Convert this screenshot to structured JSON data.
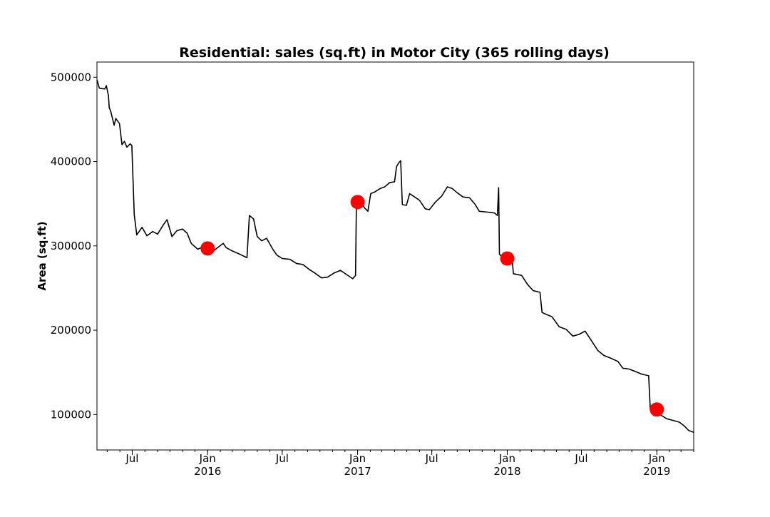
{
  "chart_data": {
    "type": "line",
    "title": "Residential: sales (sq.ft) in Motor City (365 rolling days)",
    "xlabel": "",
    "ylabel": "Area (sq.ft)",
    "xlim": [
      "2015-04-06",
      "2019-04-01"
    ],
    "ylim": [
      58000,
      518000
    ],
    "grid": false,
    "y_ticks": [
      100000,
      200000,
      300000,
      400000,
      500000
    ],
    "y_tick_labels": [
      "100000",
      "200000",
      "300000",
      "400000",
      "500000"
    ],
    "x_ticks": [
      {
        "date": "2015-07-01",
        "label": "Jul",
        "sublabel": ""
      },
      {
        "date": "2016-01-01",
        "label": "Jan",
        "sublabel": "2016"
      },
      {
        "date": "2016-07-01",
        "label": "Jul",
        "sublabel": ""
      },
      {
        "date": "2017-01-01",
        "label": "Jan",
        "sublabel": "2017"
      },
      {
        "date": "2017-07-01",
        "label": "Jul",
        "sublabel": ""
      },
      {
        "date": "2018-01-01",
        "label": "Jan",
        "sublabel": "2018"
      },
      {
        "date": "2018-07-01",
        "label": "Jul",
        "sublabel": ""
      },
      {
        "date": "2019-01-01",
        "label": "Jan",
        "sublabel": "2019"
      }
    ],
    "series": [
      {
        "line_color": "#000000",
        "points": [
          [
            "2015-04-06",
            497000
          ],
          [
            "2015-04-12",
            487000
          ],
          [
            "2015-04-25",
            486000
          ],
          [
            "2015-04-29",
            490000
          ],
          [
            "2015-05-04",
            478000
          ],
          [
            "2015-05-06",
            464000
          ],
          [
            "2015-05-10",
            459000
          ],
          [
            "2015-05-18",
            443000
          ],
          [
            "2015-05-22",
            451000
          ],
          [
            "2015-05-31",
            445000
          ],
          [
            "2015-06-06",
            420000
          ],
          [
            "2015-06-12",
            424000
          ],
          [
            "2015-06-18",
            417000
          ],
          [
            "2015-06-26",
            421000
          ],
          [
            "2015-06-30",
            419000
          ],
          [
            "2015-07-06",
            337000
          ],
          [
            "2015-07-12",
            313000
          ],
          [
            "2015-07-25",
            322000
          ],
          [
            "2015-08-06",
            312000
          ],
          [
            "2015-08-20",
            317000
          ],
          [
            "2015-09-01",
            314000
          ],
          [
            "2015-09-15",
            325000
          ],
          [
            "2015-09-24",
            331000
          ],
          [
            "2015-10-06",
            311000
          ],
          [
            "2015-10-18",
            318000
          ],
          [
            "2015-11-01",
            320000
          ],
          [
            "2015-11-12",
            315000
          ],
          [
            "2015-11-22",
            303000
          ],
          [
            "2015-12-08",
            296000
          ],
          [
            "2015-12-25",
            300000
          ],
          [
            "2016-01-15",
            294000
          ],
          [
            "2016-02-08",
            303000
          ],
          [
            "2016-02-15",
            298000
          ],
          [
            "2016-03-01",
            294000
          ],
          [
            "2016-03-20",
            290000
          ],
          [
            "2016-04-06",
            286000
          ],
          [
            "2016-04-12",
            336000
          ],
          [
            "2016-04-22",
            332000
          ],
          [
            "2016-05-01",
            311000
          ],
          [
            "2016-05-12",
            306000
          ],
          [
            "2016-05-24",
            309000
          ],
          [
            "2016-06-08",
            296000
          ],
          [
            "2016-06-18",
            289000
          ],
          [
            "2016-07-01",
            285000
          ],
          [
            "2016-07-20",
            284000
          ],
          [
            "2016-08-05",
            279000
          ],
          [
            "2016-08-20",
            278000
          ],
          [
            "2016-09-05",
            272000
          ],
          [
            "2016-09-18",
            268000
          ],
          [
            "2016-10-05",
            262000
          ],
          [
            "2016-10-20",
            263000
          ],
          [
            "2016-11-05",
            268000
          ],
          [
            "2016-11-20",
            271000
          ],
          [
            "2016-12-05",
            266000
          ],
          [
            "2016-12-20",
            261000
          ],
          [
            "2016-12-27",
            265000
          ],
          [
            "2016-12-29",
            352000
          ],
          [
            "2017-01-08",
            352000
          ],
          [
            "2017-01-18",
            345000
          ],
          [
            "2017-01-26",
            341000
          ],
          [
            "2017-02-02",
            362000
          ],
          [
            "2017-02-12",
            364000
          ],
          [
            "2017-02-25",
            368000
          ],
          [
            "2017-03-08",
            370000
          ],
          [
            "2017-03-20",
            375000
          ],
          [
            "2017-04-01",
            376000
          ],
          [
            "2017-04-06",
            394000
          ],
          [
            "2017-04-12",
            399000
          ],
          [
            "2017-04-16",
            401000
          ],
          [
            "2017-04-20",
            349000
          ],
          [
            "2017-04-30",
            348000
          ],
          [
            "2017-05-08",
            362000
          ],
          [
            "2017-05-20",
            358000
          ],
          [
            "2017-06-01",
            354000
          ],
          [
            "2017-06-15",
            344000
          ],
          [
            "2017-06-25",
            343000
          ],
          [
            "2017-07-10",
            352000
          ],
          [
            "2017-07-25",
            359000
          ],
          [
            "2017-08-08",
            370000
          ],
          [
            "2017-08-20",
            368000
          ],
          [
            "2017-09-01",
            363000
          ],
          [
            "2017-09-15",
            358000
          ],
          [
            "2017-10-01",
            357000
          ],
          [
            "2017-10-15",
            349000
          ],
          [
            "2017-10-25",
            341000
          ],
          [
            "2017-11-15",
            340000
          ],
          [
            "2017-12-01",
            339000
          ],
          [
            "2017-12-08",
            336000
          ],
          [
            "2017-12-11",
            369000
          ],
          [
            "2017-12-13",
            290000
          ],
          [
            "2017-12-22",
            286000
          ],
          [
            "2018-01-05",
            285000
          ],
          [
            "2018-01-12",
            290000
          ],
          [
            "2018-01-16",
            267000
          ],
          [
            "2018-02-05",
            265000
          ],
          [
            "2018-02-20",
            254000
          ],
          [
            "2018-03-05",
            247000
          ],
          [
            "2018-03-22",
            245000
          ],
          [
            "2018-03-27",
            221000
          ],
          [
            "2018-04-10",
            218000
          ],
          [
            "2018-04-20",
            216000
          ],
          [
            "2018-05-08",
            204000
          ],
          [
            "2018-05-25",
            201000
          ],
          [
            "2018-06-10",
            193000
          ],
          [
            "2018-06-25",
            195000
          ],
          [
            "2018-07-10",
            199000
          ],
          [
            "2018-07-25",
            188000
          ],
          [
            "2018-08-10",
            176000
          ],
          [
            "2018-08-25",
            170000
          ],
          [
            "2018-09-10",
            167000
          ],
          [
            "2018-09-28",
            163000
          ],
          [
            "2018-10-10",
            155000
          ],
          [
            "2018-10-25",
            154000
          ],
          [
            "2018-11-10",
            151000
          ],
          [
            "2018-11-25",
            148000
          ],
          [
            "2018-12-12",
            146000
          ],
          [
            "2018-12-16",
            106000
          ],
          [
            "2018-12-28",
            104000
          ],
          [
            "2019-01-12",
            99000
          ],
          [
            "2019-01-25",
            95000
          ],
          [
            "2019-02-10",
            93000
          ],
          [
            "2019-02-25",
            91000
          ],
          [
            "2019-03-10",
            86000
          ],
          [
            "2019-03-20",
            81000
          ],
          [
            "2019-04-01",
            79000
          ]
        ]
      }
    ],
    "markers": {
      "color": "#ff0000",
      "points": [
        [
          "2016-01-01",
          297000
        ],
        [
          "2017-01-01",
          352000
        ],
        [
          "2018-01-01",
          285000
        ],
        [
          "2019-01-01",
          106000
        ]
      ]
    }
  }
}
